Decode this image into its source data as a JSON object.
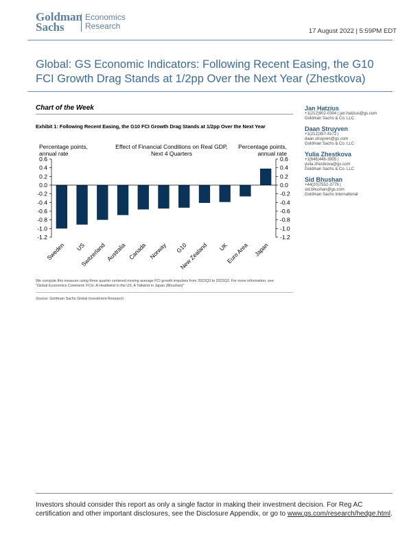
{
  "header": {
    "logo_left": [
      "Goldman",
      "Sachs"
    ],
    "logo_right": [
      "Economics",
      "Research"
    ],
    "date": "17 August 2022 | 5:59PM EDT"
  },
  "title": "Global: GS Economic Indicators: Following Recent Easing, the G10 FCI Growth Drag Stands at 1/2pp Over the Next Year (Zhestkova)",
  "section": "Chart of the Week",
  "exhibit": "Exhibit 1: Following Recent Easing, the G10 FCI Growth Drag Stands at 1/2pp Over the Next Year",
  "authors": [
    {
      "name": "Jan Hatzius",
      "lines": [
        "+1(212)902-0394 | jan.hatzius@gs.com",
        "Goldman Sachs & Co. LLC"
      ]
    },
    {
      "name": "Daan Struyven",
      "lines": [
        "+1(212)357-4172 |",
        "daan.struyven@gs.com",
        "Goldman Sachs & Co. LLC"
      ]
    },
    {
      "name": "Yulia Zhestkova",
      "lines": [
        "+1(646)446-3905 |",
        "yulia.zhestkova@gs.com",
        "Goldman Sachs & Co. LLC"
      ]
    },
    {
      "name": "Sid Bhushan",
      "lines": [
        "+44(20)7552-3779 |",
        "sid.bhushan@gs.com",
        "Goldman Sachs International"
      ]
    }
  ],
  "chart_data": {
    "type": "bar",
    "title": "Effect of Financial Conditions on Real GDP, Next 4 Quarters",
    "ylabel_left": "Percentage points, annual rate",
    "ylabel_right": "Percentage points, annual rate",
    "categories": [
      "Sweden",
      "US",
      "Switzerland",
      "Australia",
      "Canada",
      "Norway",
      "G10",
      "New Zealand",
      "UK",
      "Euro Area",
      "Japan"
    ],
    "values": [
      -1.0,
      -0.91,
      -0.8,
      -0.69,
      -0.56,
      -0.54,
      -0.52,
      -0.41,
      -0.39,
      -0.26,
      0.38
    ],
    "ylim": [
      -1.2,
      0.6
    ],
    "yticks": [
      "0.6",
      "0.4",
      "0.2",
      "0.0",
      "-0.2",
      "-0.4",
      "-0.6",
      "-0.8",
      "-1.0",
      "-1.2"
    ],
    "bar_color": "#0b3258",
    "grid": false
  },
  "footnote": [
    "We compute this measure using three quarter centered moving average FCI growth impulses from 2022Q3 to 2023Q2. For more information, see:",
    "\"Global Economics Comment: FCIs: A Headwind in the US, A Tailwind in Japan (Bhushan)\""
  ],
  "source": "Source: Goldman Sachs Global Investment Research",
  "disclaimer": "Investors should consider this report as only a single factor in making their investment decision. For Reg AC certification and other important disclosures, see the Disclosure Appendix, or go to ",
  "disclaimer_link": "www.gs.com/research/hedge.html",
  "disclaimer_end": "."
}
